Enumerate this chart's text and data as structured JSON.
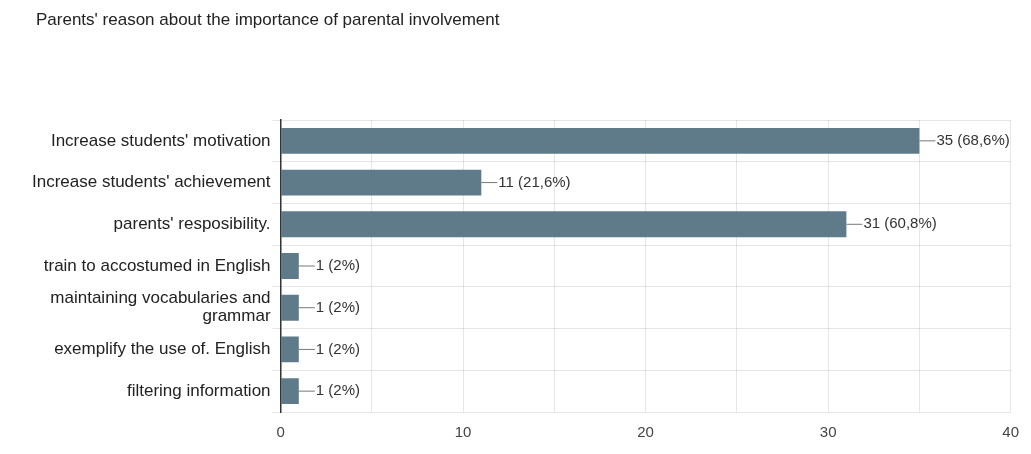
{
  "chart_data": {
    "type": "bar",
    "orientation": "horizontal",
    "title": "Parents' reason about the importance of parental involvement",
    "categories": [
      "Increase students' motivation",
      "Increase students' achievement",
      "parents' resposibility.",
      "train to accostumed in English",
      "maintaining vocabularies and grammar",
      "exemplify the use of. English",
      "filtering information"
    ],
    "values": [
      35,
      11,
      31,
      1,
      1,
      1,
      1
    ],
    "color": "#5f7b89",
    "value_labels": [
      "35 (68,6%)",
      "11 (21,6%)",
      "31 (60,8%)",
      "1 (2%)",
      "1 (2%)",
      "1 (2%)",
      "1 (2%)"
    ],
    "xlim": [
      0,
      40
    ],
    "xticks": [
      0,
      {
        "value": 5,
        "label": null
      },
      10,
      {
        "value": 15,
        "label": null
      },
      20,
      {
        "value": 25,
        "label": null
      },
      30,
      {
        "value": 35,
        "label": null
      },
      40
    ],
    "grid": true,
    "legend": false
  }
}
